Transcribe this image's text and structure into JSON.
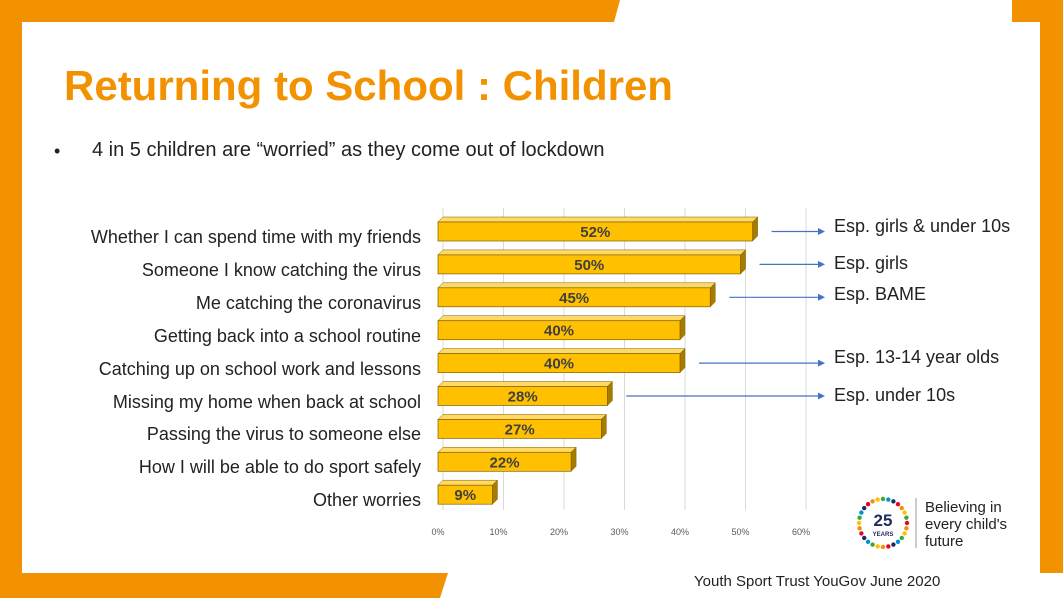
{
  "title": "Returning to School : Children",
  "bullet": {
    "marker": "•",
    "text": "4 in 5 children are “worried” as they come out of lockdown"
  },
  "chart_data": {
    "type": "bar",
    "orientation": "horizontal",
    "categories": [
      "Whether I can spend time with my friends",
      "Someone I know catching the virus",
      "Me catching the coronavirus",
      "Getting back into a school routine",
      "Catching up on school work and lessons",
      "Missing my home when back at  school",
      "Passing the virus to someone else",
      "How I will be able to do sport safely",
      "Other worries"
    ],
    "values": [
      52,
      50,
      45,
      40,
      40,
      28,
      27,
      22,
      9
    ],
    "data_labels": [
      "52%",
      "50%",
      "45%",
      "40%",
      "40%",
      "28%",
      "27%",
      "22%",
      "9%"
    ],
    "xlim": [
      0,
      60
    ],
    "xticks": [
      "0%",
      "10%",
      "20%",
      "30%",
      "40%",
      "50%",
      "60%"
    ],
    "grid": true,
    "bar_color": "#FFC000",
    "annotations": [
      {
        "text": "Esp. girls & under 10s",
        "category_index": 0
      },
      {
        "text": "Esp. girls",
        "category_index": 1
      },
      {
        "text": "Esp. BAME",
        "category_index": 2
      },
      {
        "text": "Esp. 13-14 year olds",
        "category_index": 4
      },
      {
        "text": "Esp. under 10s",
        "category_index": 5
      }
    ]
  },
  "logo": {
    "number": "25",
    "word": "YEARS",
    "tagline": [
      "Believing in",
      "every child's",
      "future"
    ]
  },
  "source": "Youth Sport Trust YouGov June 2020",
  "colors": {
    "accent": "#F39200",
    "bar": "#FFC000",
    "arrow": "#4472C4",
    "logo_navy": "#1F2A5E"
  }
}
